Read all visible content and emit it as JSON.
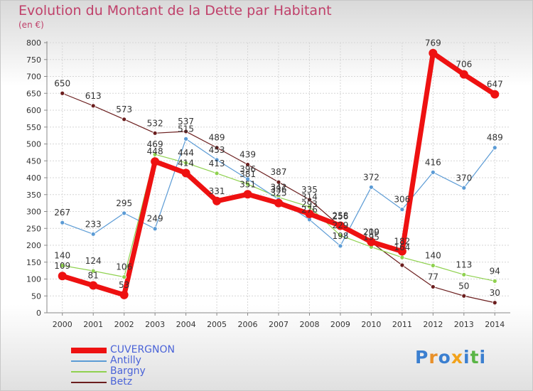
{
  "header": {
    "title": "Evolution du Montant de la Dette par Habitant",
    "unit": "(en €)"
  },
  "logo": {
    "letters": [
      "P",
      "r",
      "o",
      "x",
      "i",
      "t",
      "i"
    ],
    "colors": [
      "#3b7fd0",
      "#e8902a",
      "#3b7fd0",
      "#f2a21b",
      "#3b7fd0",
      "#5ab545",
      "#3b7fd0"
    ]
  },
  "chart_data": {
    "type": "line",
    "title": "Evolution du Montant de la Dette par Habitant",
    "ylabel": "(en €)",
    "xlabel": "",
    "x": [
      "2000",
      "2001",
      "2002",
      "2003",
      "2004",
      "2005",
      "2006",
      "2007",
      "2008",
      "2009",
      "2010",
      "2011",
      "2012",
      "2013",
      "2014"
    ],
    "ylim": [
      0,
      800
    ],
    "yticks": [
      "0",
      "50",
      "100",
      "150",
      "200",
      "250",
      "300",
      "350",
      "400",
      "450",
      "500",
      "550",
      "600",
      "650",
      "700",
      "750",
      "800"
    ],
    "grid": true,
    "legend": "bottom-left",
    "series": [
      {
        "name": "Betz",
        "color": "#6b1e1e",
        "values": [
          650,
          613,
          573,
          532,
          537,
          489,
          439,
          387,
          335,
          256,
          209,
          141,
          77,
          50,
          30
        ],
        "labels": [
          "650",
          "613",
          "573",
          "532",
          "537",
          "489",
          "439",
          "387",
          "335",
          "256",
          "209",
          "",
          "77",
          "50",
          "30"
        ]
      },
      {
        "name": "Bargny",
        "color": "#8fd14f",
        "values": [
          140,
          124,
          106,
          469,
          444,
          413,
          381,
          342,
          314,
          229,
          195,
          164,
          140,
          113,
          94
        ],
        "labels": [
          "140",
          "124",
          "106",
          "469",
          "444",
          "413",
          "381",
          "342",
          "314",
          "229",
          "195",
          "164",
          "140",
          "113",
          "94"
        ]
      },
      {
        "name": "Antilly",
        "color": "#5b9bd5",
        "values": [
          267,
          233,
          295,
          249,
          515,
          453,
          396,
          336,
          276,
          198,
          372,
          306,
          416,
          370,
          489
        ],
        "labels": [
          "267",
          "233",
          "295",
          "249",
          "515",
          "453",
          "396",
          "336",
          "276",
          "198",
          "372",
          "306",
          "416",
          "370",
          "489"
        ]
      },
      {
        "name": "CUVERGNON",
        "color": "#ee1111",
        "values": [
          109,
          81,
          53,
          448,
          414,
          331,
          351,
          325,
          293,
          258,
          210,
          182,
          769,
          706,
          647
        ],
        "labels": [
          "109",
          "81",
          "53",
          "448",
          "414",
          "331",
          "351",
          "325",
          "293",
          "258",
          "210",
          "182",
          "769",
          "706",
          "647"
        ]
      }
    ]
  }
}
